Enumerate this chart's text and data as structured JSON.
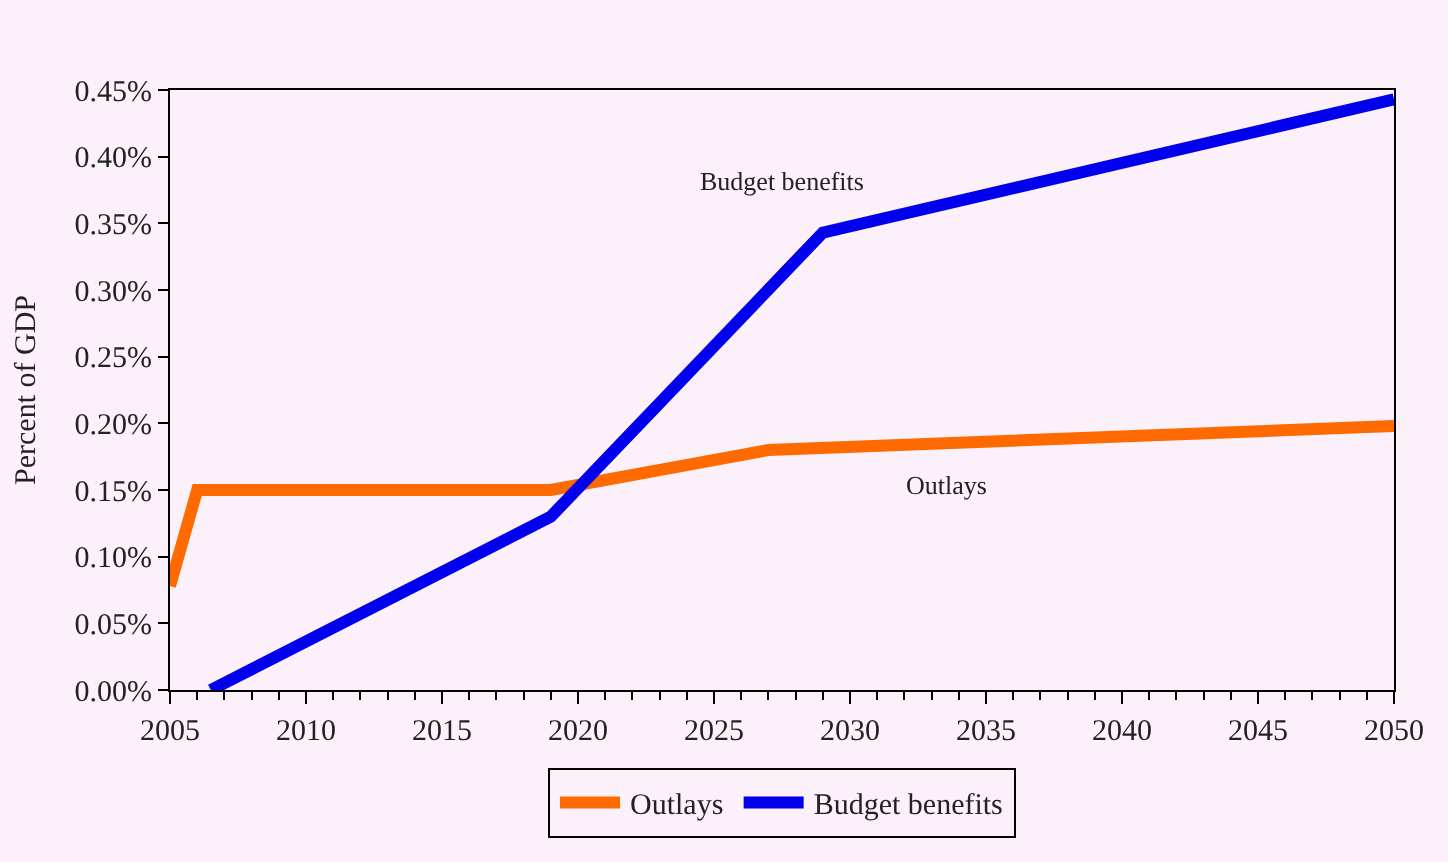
{
  "chart_data": {
    "type": "line",
    "ylabel": "Percent of GDP",
    "xlim": [
      2005,
      2050
    ],
    "xticks": [
      2005,
      2010,
      2015,
      2020,
      2025,
      2030,
      2035,
      2040,
      2045,
      2050
    ],
    "ylim": [
      0,
      0.45
    ],
    "yticks": [
      {
        "value": 0,
        "label": "0.00%"
      },
      {
        "value": 0.05,
        "label": "0.05%"
      },
      {
        "value": 0.1,
        "label": "0.10%"
      },
      {
        "value": 0.15,
        "label": "0.15%"
      },
      {
        "value": 0.2,
        "label": "0.20%"
      },
      {
        "value": 0.25,
        "label": "0.25%"
      },
      {
        "value": 0.3,
        "label": "0.30%"
      },
      {
        "value": 0.35,
        "label": "0.35%"
      },
      {
        "value": 0.4,
        "label": "0.40%"
      },
      {
        "value": 0.45,
        "label": "0.45%"
      }
    ],
    "series": [
      {
        "name": "Outlays",
        "color": "#ff6a00",
        "x": [
          2005,
          2006,
          2019,
          2027,
          2050
        ],
        "values": [
          0.078,
          0.15,
          0.15,
          0.18,
          0.198
        ]
      },
      {
        "name": "Budget benefits",
        "color": "#0000ee",
        "x": [
          2006.5,
          2019,
          2029,
          2050
        ],
        "values": [
          0.0,
          0.13,
          0.343,
          0.443
        ]
      }
    ],
    "annotations": [
      "Budget benefits",
      "Outlays"
    ],
    "grid": false,
    "legend": "bottom",
    "marker": "none",
    "line_style": "solid"
  }
}
